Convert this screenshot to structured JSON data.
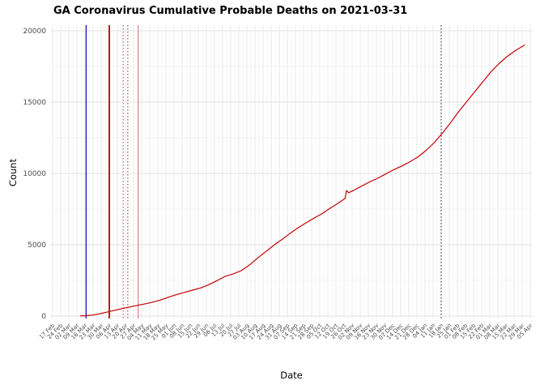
{
  "page": {
    "background": "#ffffff"
  },
  "chart_data": {
    "type": "line",
    "title": "GA Coronavirus Cumulative Probable Deaths on 2021-03-31",
    "xlabel": "Date",
    "ylabel": "Count",
    "ylim": [
      0,
      20000
    ],
    "yticks": [
      0,
      5000,
      10000,
      15000,
      20000
    ],
    "y_minor_ticks": [
      2500,
      7500,
      12500,
      17500
    ],
    "x_axis_start": "2020-02-17",
    "x_axis_end": "2021-04-05",
    "x_tick_interval_days": 7,
    "x_tick_labels": [
      "17 Feb",
      "24 Feb",
      "02 Mar",
      "09 Mar",
      "16 Mar",
      "23 Mar",
      "30 Mar",
      "06 Apr",
      "13 Apr",
      "20 Apr",
      "27 Apr",
      "04 May",
      "11 May",
      "18 May",
      "25 May",
      "01 Jun",
      "08 Jun",
      "15 Jun",
      "22 Jun",
      "29 Jun",
      "06 Jul",
      "13 Jul",
      "20 Jul",
      "27 Jul",
      "03 Aug",
      "10 Aug",
      "17 Aug",
      "24 Aug",
      "31 Aug",
      "07 Sep",
      "14 Sep",
      "21 Sep",
      "28 Sep",
      "05 Oct",
      "12 Oct",
      "19 Oct",
      "26 Oct",
      "02 Nov",
      "09 Nov",
      "16 Nov",
      "23 Nov",
      "30 Nov",
      "07 Dec",
      "14 Dec",
      "21 Dec",
      "28 Dec",
      "04 Jan",
      "11 Jan",
      "18 Jan",
      "25 Jan",
      "01 Feb",
      "08 Feb",
      "15 Feb",
      "22 Feb",
      "01 Mar",
      "08 Mar",
      "15 Mar",
      "22 Mar",
      "29 Mar",
      "05 Apr"
    ],
    "grid": true,
    "legend_position": "none",
    "colors": {
      "line": "#c40000",
      "grid_major": "#e3e3e3",
      "grid_minor": "#f2f2f2",
      "tick_text": "#4d4d4d",
      "title_text": "#000000"
    },
    "series": [
      {
        "name": "Cumulative probable deaths",
        "color": "#c40000",
        "points": [
          [
            "2020-03-12",
            10
          ],
          [
            "2020-03-17",
            30
          ],
          [
            "2020-03-22",
            70
          ],
          [
            "2020-03-27",
            130
          ],
          [
            "2020-04-01",
            220
          ],
          [
            "2020-04-08",
            350
          ],
          [
            "2020-04-15",
            490
          ],
          [
            "2020-04-22",
            610
          ],
          [
            "2020-04-29",
            730
          ],
          [
            "2020-05-06",
            840
          ],
          [
            "2020-05-13",
            960
          ],
          [
            "2020-05-20",
            1120
          ],
          [
            "2020-05-27",
            1320
          ],
          [
            "2020-06-03",
            1500
          ],
          [
            "2020-06-10",
            1660
          ],
          [
            "2020-06-17",
            1820
          ],
          [
            "2020-06-24",
            1970
          ],
          [
            "2020-07-01",
            2200
          ],
          [
            "2020-07-08",
            2480
          ],
          [
            "2020-07-15",
            2780
          ],
          [
            "2020-07-22",
            2950
          ],
          [
            "2020-07-29",
            3180
          ],
          [
            "2020-08-05",
            3560
          ],
          [
            "2020-08-12",
            4050
          ],
          [
            "2020-08-19",
            4500
          ],
          [
            "2020-08-26",
            4950
          ],
          [
            "2020-09-02",
            5350
          ],
          [
            "2020-09-09",
            5780
          ],
          [
            "2020-09-16",
            6180
          ],
          [
            "2020-09-23",
            6530
          ],
          [
            "2020-09-30",
            6870
          ],
          [
            "2020-10-07",
            7180
          ],
          [
            "2020-10-14",
            7560
          ],
          [
            "2020-10-21",
            7920
          ],
          [
            "2020-10-27",
            8250
          ],
          [
            "2020-10-28",
            8800
          ],
          [
            "2020-10-30",
            8650
          ],
          [
            "2020-11-03",
            8800
          ],
          [
            "2020-11-10",
            9100
          ],
          [
            "2020-11-17",
            9400
          ],
          [
            "2020-11-24",
            9660
          ],
          [
            "2020-12-01",
            9960
          ],
          [
            "2020-12-08",
            10260
          ],
          [
            "2020-12-15",
            10520
          ],
          [
            "2020-12-22",
            10820
          ],
          [
            "2020-12-29",
            11160
          ],
          [
            "2021-01-05",
            11620
          ],
          [
            "2021-01-12",
            12160
          ],
          [
            "2021-01-19",
            12820
          ],
          [
            "2021-01-26",
            13540
          ],
          [
            "2021-02-02",
            14320
          ],
          [
            "2021-02-09",
            15020
          ],
          [
            "2021-02-16",
            15720
          ],
          [
            "2021-02-23",
            16420
          ],
          [
            "2021-03-02",
            17120
          ],
          [
            "2021-03-09",
            17700
          ],
          [
            "2021-03-16",
            18200
          ],
          [
            "2021-03-23",
            18600
          ],
          [
            "2021-03-28",
            18850
          ],
          [
            "2021-03-31",
            19000
          ]
        ]
      }
    ],
    "reference_lines": [
      {
        "date": "2020-03-17",
        "color": "#2020c0",
        "style": "solid",
        "width": 1.4
      },
      {
        "date": "2020-04-06",
        "color": "#b40000",
        "style": "solid",
        "width": 1.8
      },
      {
        "date": "2020-04-18",
        "color": "#c03030",
        "style": "dotted",
        "width": 1
      },
      {
        "date": "2020-04-22",
        "color": "#484868",
        "style": "dotted",
        "width": 1
      },
      {
        "date": "2020-05-01",
        "color": "#e89090",
        "style": "solid",
        "width": 1.4
      },
      {
        "date": "2021-01-18",
        "color": "#383858",
        "style": "dotted",
        "width": 1.2
      }
    ]
  }
}
